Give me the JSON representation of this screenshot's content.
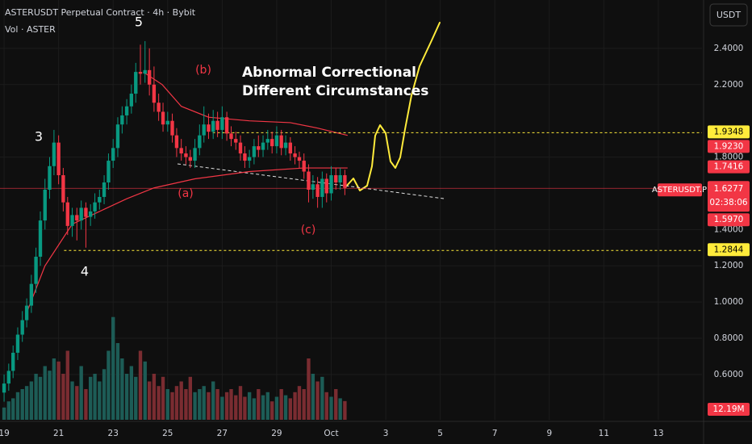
{
  "chart_data": {
    "type": "candlestick",
    "title": "ASTERUSDT Perpetual Contract · 4h · Bybit",
    "subtitle": "Vol · ASTER",
    "currency": "USDT",
    "up_color": "#089981",
    "down_color": "#f23645",
    "volume_up_color": "#1d5c56",
    "volume_down_color": "#7a2c31",
    "x": [
      19,
      19.17,
      19.33,
      19.5,
      19.67,
      19.83,
      20,
      20.17,
      20.33,
      20.5,
      20.67,
      20.83,
      21,
      21.17,
      21.33,
      21.5,
      21.67,
      21.83,
      22,
      22.17,
      22.33,
      22.5,
      22.67,
      22.83,
      23,
      23.17,
      23.33,
      23.5,
      23.67,
      23.83,
      24,
      24.17,
      24.33,
      24.5,
      24.67,
      24.83,
      25,
      25.17,
      25.33,
      25.5,
      25.67,
      25.83,
      26,
      26.17,
      26.33,
      26.5,
      26.67,
      26.83,
      27,
      27.17,
      27.33,
      27.5,
      27.67,
      27.83,
      28,
      28.17,
      28.33,
      28.5,
      28.67,
      28.83,
      29,
      29.17,
      29.33,
      29.5,
      29.67,
      29.83,
      30,
      30.17,
      30.33,
      30.5,
      30.67,
      30.83,
      31,
      31.17,
      31.33,
      31.5
    ],
    "open": [
      0.5,
      0.55,
      0.62,
      0.72,
      0.82,
      0.9,
      0.98,
      1.1,
      1.25,
      1.45,
      1.62,
      1.75,
      1.88,
      1.7,
      1.55,
      1.42,
      1.48,
      1.45,
      1.52,
      1.47,
      1.5,
      1.55,
      1.58,
      1.66,
      1.78,
      1.85,
      1.98,
      2.03,
      2.08,
      2.15,
      2.27,
      2.26,
      2.28,
      2.2,
      2.1,
      2.05,
      1.98,
      2,
      1.92,
      1.85,
      1.82,
      1.8,
      1.78,
      1.85,
      1.92,
      1.98,
      1.94,
      2,
      1.95,
      2.02,
      1.93,
      1.9,
      1.88,
      1.82,
      1.78,
      1.8,
      1.86,
      1.84,
      1.88,
      1.9,
      1.86,
      1.92,
      1.85,
      1.88,
      1.82,
      1.8,
      1.78,
      1.72,
      1.62,
      1.65,
      1.58,
      1.68,
      1.6,
      1.7,
      1.66,
      1.7
    ],
    "high": [
      0.6,
      0.66,
      0.76,
      0.86,
      0.95,
      1.02,
      1.15,
      1.3,
      1.5,
      1.68,
      1.8,
      1.95,
      1.92,
      1.74,
      1.58,
      1.52,
      1.52,
      1.56,
      1.55,
      1.54,
      1.6,
      1.62,
      1.7,
      1.82,
      1.9,
      2.02,
      2.08,
      2.12,
      2.2,
      2.32,
      2.42,
      2.44,
      2.4,
      2.3,
      2.15,
      2.1,
      2.05,
      2.04,
      1.96,
      1.9,
      1.86,
      1.84,
      1.9,
      1.98,
      2.08,
      2.04,
      2.06,
      2.05,
      2.08,
      2.05,
      1.97,
      1.94,
      1.92,
      1.86,
      1.84,
      1.9,
      1.92,
      1.92,
      1.95,
      1.94,
      1.97,
      1.95,
      1.92,
      1.91,
      1.86,
      1.83,
      1.82,
      1.76,
      1.7,
      1.69,
      1.72,
      1.71,
      1.75,
      1.74,
      1.74,
      1.73
    ],
    "low": [
      0.45,
      0.51,
      0.58,
      0.68,
      0.78,
      0.86,
      0.94,
      1.05,
      1.2,
      1.4,
      1.57,
      1.7,
      1.65,
      1.5,
      1.37,
      1.36,
      1.34,
      1.4,
      1.3,
      1.42,
      1.46,
      1.51,
      1.54,
      1.62,
      1.74,
      1.8,
      1.93,
      1.98,
      2.04,
      2.1,
      2.2,
      2.21,
      2.14,
      2.05,
      2,
      1.94,
      1.94,
      1.88,
      1.8,
      1.78,
      1.76,
      1.74,
      1.74,
      1.81,
      1.88,
      1.9,
      1.9,
      1.91,
      1.9,
      1.89,
      1.86,
      1.84,
      1.78,
      1.74,
      1.74,
      1.76,
      1.8,
      1.8,
      1.84,
      1.82,
      1.82,
      1.81,
      1.81,
      1.78,
      1.76,
      1.74,
      1.68,
      1.55,
      1.57,
      1.52,
      1.52,
      1.55,
      1.56,
      1.62,
      1.62,
      1.59
    ],
    "close": [
      0.55,
      0.62,
      0.72,
      0.82,
      0.9,
      0.98,
      1.1,
      1.25,
      1.45,
      1.62,
      1.75,
      1.88,
      1.7,
      1.55,
      1.42,
      1.48,
      1.45,
      1.52,
      1.47,
      1.5,
      1.55,
      1.58,
      1.66,
      1.78,
      1.85,
      1.98,
      2.03,
      2.08,
      2.15,
      2.27,
      2.26,
      2.28,
      2.2,
      2.1,
      2.05,
      1.98,
      2,
      1.92,
      1.85,
      1.82,
      1.8,
      1.78,
      1.85,
      1.92,
      1.98,
      1.94,
      2,
      1.95,
      2.02,
      1.93,
      1.9,
      1.88,
      1.82,
      1.78,
      1.8,
      1.86,
      1.84,
      1.88,
      1.9,
      1.86,
      1.92,
      1.85,
      1.88,
      1.82,
      1.8,
      1.78,
      1.72,
      1.62,
      1.65,
      1.58,
      1.68,
      1.6,
      1.7,
      1.66,
      1.7,
      1.63
    ],
    "volume": {
      "values": [
        8,
        12,
        14,
        18,
        20,
        22,
        25,
        30,
        28,
        35,
        32,
        40,
        38,
        30,
        45,
        25,
        22,
        35,
        20,
        28,
        30,
        25,
        33,
        45,
        67,
        50,
        40,
        30,
        35,
        28,
        45,
        38,
        25,
        30,
        22,
        28,
        20,
        18,
        22,
        25,
        20,
        28,
        18,
        20,
        22,
        18,
        25,
        20,
        15,
        18,
        20,
        16,
        22,
        15,
        18,
        14,
        20,
        16,
        18,
        12,
        15,
        20,
        16,
        14,
        18,
        22,
        20,
        40,
        30,
        25,
        28,
        18,
        15,
        20,
        14,
        12.19
      ],
      "last_label": "12.19M",
      "vlim": [
        0,
        70
      ]
    },
    "xlim": [
      18.85,
      44.6
    ],
    "xticks": [
      19,
      21,
      23,
      25,
      27,
      29,
      {
        "value": 31,
        "label": "Oct"
      },
      {
        "value": 33,
        "label": "3"
      },
      {
        "value": 35,
        "label": "5"
      },
      {
        "value": 37,
        "label": "7"
      },
      {
        "value": 39,
        "label": "9"
      },
      {
        "value": 41,
        "label": "11"
      },
      {
        "value": 43,
        "label": "13"
      }
    ],
    "ylim": [
      0.35,
      2.667
    ],
    "yticks": [
      {
        "value": 2.4,
        "label": "2.4000"
      },
      {
        "value": 2.2,
        "label": "2.2000"
      },
      {
        "value": 1.8,
        "label": "1.8000"
      },
      {
        "value": 1.4,
        "label": "1.4000"
      },
      {
        "value": 1.2,
        "label": "1.2000"
      },
      {
        "value": 1,
        "label": "1.0000"
      },
      {
        "value": 0.8,
        "label": "0.8000"
      },
      {
        "value": 0.6,
        "label": "0.6000"
      }
    ],
    "grid": true,
    "bands": [
      {
        "color": "#f23645",
        "x": [
          19.8,
          20.5,
          21.5,
          22.5,
          23.5,
          24.5,
          26,
          28,
          30,
          31.6
        ],
        "values": [
          0.93,
          1.2,
          1.43,
          1.5,
          1.57,
          1.63,
          1.68,
          1.72,
          1.74,
          1.74
        ]
      },
      {
        "color": "#f23645",
        "x": [
          24.1,
          24.8,
          25.5,
          26.5,
          28,
          29.5,
          30.5,
          31.6
        ],
        "values": [
          2.27,
          2.2,
          2.08,
          2.02,
          2,
          1.99,
          1.96,
          1.92
        ]
      }
    ],
    "levels": [
      {
        "price": 1.9348,
        "from": 26.65,
        "color": "#ffeb3b"
      },
      {
        "price": 1.2844,
        "from": 21.2,
        "color": "#ffeb3b"
      }
    ],
    "last": {
      "symbol": "ASTERUSDT.P",
      "price": 1.6277,
      "countdown": "02:38:06",
      "color": "#f23645"
    },
    "price_tags": [
      {
        "price": {
          "value": 1.923,
          "label": "1.9230"
        },
        "color": "#f23645"
      },
      {
        "price": 1.7416,
        "color": "#f23645"
      },
      {
        "price": {
          "value": 1.597,
          "label": "1.5970"
        },
        "color": "#f23645"
      }
    ],
    "wave_labels": [
      "5",
      "3",
      "4"
    ],
    "sub_labels": [
      "(b)",
      "(a)",
      "(c)"
    ],
    "note": [
      "Abnormal Correctional",
      "Different Circumstances"
    ]
  }
}
